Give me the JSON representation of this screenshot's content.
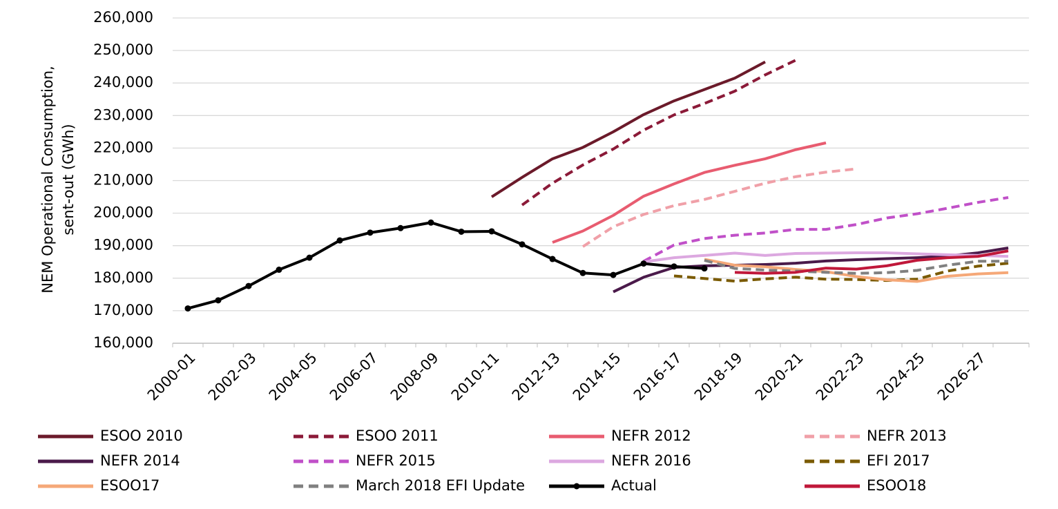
{
  "chart_data": {
    "type": "line",
    "ylabel": [
      "NEM Operational Consumption,",
      "sent-out  (GWh)"
    ],
    "categories": [
      "2000-01",
      null,
      "2002-03",
      null,
      "2004-05",
      null,
      "2006-07",
      null,
      "2008-09",
      null,
      "2010-11",
      null,
      "2012-13",
      null,
      "2014-15",
      null,
      "2016-17",
      null,
      "2018-19",
      null,
      "2020-21",
      null,
      "2022-23",
      null,
      "2024-25",
      null,
      "2026-27",
      null
    ],
    "ylim": [
      160000,
      260000
    ],
    "yticks": [
      {
        "value": 160000,
        "label": "160,000"
      },
      {
        "value": 170000,
        "label": "170,000"
      },
      {
        "value": 180000,
        "label": "180,000"
      },
      {
        "value": 190000,
        "label": "190,000"
      },
      {
        "value": 200000,
        "label": "200,000"
      },
      {
        "value": 210000,
        "label": "210,000"
      },
      {
        "value": 220000,
        "label": "220,000"
      },
      {
        "value": 230000,
        "label": "230,000"
      },
      {
        "value": 240000,
        "label": "240,000"
      },
      {
        "value": 250000,
        "label": "250,000"
      },
      {
        "value": 260000,
        "label": "260,000"
      }
    ],
    "grid": true,
    "legend": "bottom",
    "series": [
      {
        "name": "ESOO 2010",
        "color": "#6b1a2a",
        "dashed": false,
        "values": [
          null,
          null,
          null,
          null,
          null,
          null,
          null,
          null,
          null,
          null,
          205000,
          211000,
          216700,
          220200,
          225000,
          230300,
          234500,
          238000,
          241500,
          246500,
          null,
          null,
          null,
          null,
          null,
          null,
          null,
          null
        ]
      },
      {
        "name": "ESOO 2011",
        "color": "#8b1a38",
        "dashed": true,
        "values": [
          null,
          null,
          null,
          null,
          null,
          null,
          null,
          null,
          null,
          null,
          null,
          202500,
          209200,
          214800,
          219700,
          225500,
          230200,
          233700,
          237500,
          242500,
          247000,
          null,
          null,
          null,
          null,
          null,
          null,
          null
        ]
      },
      {
        "name": "NEFR 2012",
        "color": "#e85c70",
        "dashed": false,
        "values": [
          null,
          null,
          null,
          null,
          null,
          null,
          null,
          null,
          null,
          null,
          null,
          null,
          191000,
          194500,
          199300,
          205200,
          209000,
          212500,
          214700,
          216700,
          219500,
          221600,
          null,
          null,
          null,
          null,
          null,
          null
        ]
      },
      {
        "name": "NEFR 2013",
        "color": "#f0a0a8",
        "dashed": true,
        "values": [
          null,
          null,
          null,
          null,
          null,
          null,
          null,
          null,
          null,
          null,
          null,
          null,
          null,
          189700,
          195800,
          199600,
          202300,
          204200,
          206700,
          209200,
          211200,
          212600,
          213600,
          null,
          null,
          null,
          null,
          null
        ]
      },
      {
        "name": "NEFR 2014",
        "color": "#4a1a4a",
        "dashed": false,
        "values": [
          null,
          null,
          null,
          null,
          null,
          null,
          null,
          null,
          null,
          null,
          null,
          null,
          null,
          null,
          175800,
          180300,
          183300,
          183800,
          184000,
          184200,
          184600,
          185300,
          185700,
          186000,
          186300,
          186800,
          187800,
          189300
        ]
      },
      {
        "name": "NEFR 2015",
        "color": "#c050c8",
        "dashed": true,
        "values": [
          null,
          null,
          null,
          null,
          null,
          null,
          null,
          null,
          null,
          null,
          null,
          null,
          null,
          null,
          null,
          185200,
          190200,
          192200,
          193200,
          193900,
          195000,
          195000,
          196500,
          198500,
          199800,
          201500,
          203300,
          204800
        ]
      },
      {
        "name": "NEFR 2016",
        "color": "#dca8e0",
        "dashed": false,
        "values": [
          null,
          null,
          null,
          null,
          null,
          null,
          null,
          null,
          null,
          null,
          null,
          null,
          null,
          null,
          null,
          185000,
          186300,
          187000,
          187700,
          187000,
          187600,
          187700,
          187800,
          187800,
          187500,
          187200,
          187000,
          186700
        ]
      },
      {
        "name": "EFI 2017",
        "color": "#7a5a00",
        "dashed": true,
        "values": [
          null,
          null,
          null,
          null,
          null,
          null,
          null,
          null,
          null,
          null,
          null,
          null,
          null,
          null,
          null,
          null,
          180700,
          179900,
          179100,
          179800,
          180300,
          179700,
          179600,
          179300,
          179700,
          182200,
          183700,
          184600
        ]
      },
      {
        "name": "ESOO17",
        "color": "#f5a878",
        "dashed": false,
        "values": [
          null,
          null,
          null,
          null,
          null,
          null,
          null,
          null,
          null,
          null,
          null,
          null,
          null,
          null,
          null,
          null,
          null,
          185800,
          184000,
          183500,
          182700,
          182000,
          180500,
          179500,
          179000,
          180600,
          181300,
          181700
        ]
      },
      {
        "name": "March 2018 EFI Update",
        "color": "#808080",
        "dashed": true,
        "values": [
          null,
          null,
          null,
          null,
          null,
          null,
          null,
          null,
          null,
          null,
          null,
          null,
          null,
          null,
          null,
          null,
          null,
          185500,
          183000,
          182500,
          182200,
          181800,
          181500,
          181700,
          182400,
          184000,
          185200,
          185200
        ]
      },
      {
        "name": "Actual",
        "color": "#000000",
        "dashed": false,
        "markers": true,
        "values": [
          170700,
          173200,
          177600,
          182600,
          186300,
          191600,
          194000,
          195400,
          197100,
          194300,
          194400,
          190400,
          185900,
          181600,
          181000,
          184500,
          183600,
          183000,
          null,
          null,
          null,
          null,
          null,
          null,
          null,
          null,
          null,
          null
        ]
      },
      {
        "name": "ESOO18",
        "color": "#c0183a",
        "dashed": false,
        "values": [
          null,
          null,
          null,
          null,
          null,
          null,
          null,
          null,
          null,
          null,
          null,
          null,
          null,
          null,
          null,
          null,
          null,
          null,
          181800,
          181500,
          181800,
          183100,
          182800,
          183800,
          185500,
          186300,
          186700,
          188400
        ]
      }
    ]
  }
}
